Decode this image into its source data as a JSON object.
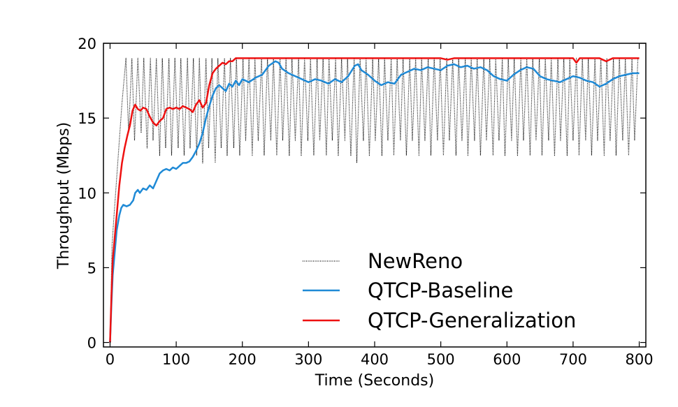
{
  "chart_data": {
    "type": "line",
    "title": "",
    "xlabel": "Time (Seconds)",
    "ylabel": "Throughput (Mbps)",
    "xlim": [
      -10,
      810
    ],
    "ylim": [
      -0.3,
      20
    ],
    "xticks": [
      0,
      100,
      200,
      300,
      400,
      500,
      600,
      700,
      800
    ],
    "yticks": [
      0,
      5,
      10,
      15,
      20
    ],
    "grid": false,
    "legend_position": "lower-right",
    "series": [
      {
        "name": "NewReno",
        "color": "#000000",
        "style": "dotted",
        "oscillation": {
          "low": 12.5,
          "high": 19.0,
          "period_s": 8.5
        },
        "x": [
          0,
          3,
          6,
          10,
          14,
          18,
          24,
          28,
          33,
          37,
          42,
          47,
          51,
          56,
          61,
          65,
          70,
          75,
          79,
          84,
          89,
          93,
          98,
          103,
          107,
          112,
          117,
          121,
          126,
          131,
          135,
          140,
          145,
          149,
          154,
          159,
          163,
          168,
          173,
          177,
          182,
          187,
          191,
          196,
          201,
          205,
          210,
          215,
          219,
          224,
          229,
          233,
          238,
          243,
          247,
          252,
          257,
          261,
          266,
          271,
          275,
          280,
          285,
          289,
          294,
          299,
          303,
          308,
          313,
          317,
          322,
          327,
          331,
          336,
          341,
          345,
          350,
          355,
          359,
          364,
          369,
          373,
          378,
          383,
          387,
          392,
          397,
          401,
          406,
          411,
          415,
          420,
          425,
          429,
          434,
          439,
          443,
          448,
          453,
          457,
          462,
          467,
          471,
          476,
          481,
          485,
          490,
          495,
          499,
          504,
          509,
          513,
          518,
          523,
          527,
          532,
          537,
          541,
          546,
          551,
          555,
          560,
          565,
          569,
          574,
          579,
          583,
          588,
          593,
          597,
          602,
          607,
          611,
          616,
          621,
          625,
          630,
          635,
          639,
          644,
          649,
          653,
          658,
          663,
          667,
          672,
          677,
          681,
          686,
          691,
          695,
          700,
          705,
          709,
          714,
          719,
          723,
          728,
          733,
          737,
          742,
          747,
          751,
          756,
          761,
          765,
          770,
          775,
          779,
          784,
          789,
          793,
          798
        ],
        "y": [
          0,
          6.5,
          8.5,
          11,
          13.5,
          16,
          19,
          14,
          19,
          13.5,
          19,
          14,
          19,
          13,
          19,
          13.5,
          19,
          12.5,
          19,
          13,
          19,
          12.5,
          19,
          13,
          19,
          12.5,
          19,
          13,
          19,
          12.5,
          19,
          12,
          19,
          13,
          19,
          12,
          19,
          13,
          19,
          12.5,
          19,
          13,
          19,
          12.5,
          19,
          13.5,
          19,
          12.5,
          19,
          13.5,
          19,
          12.5,
          19,
          13.5,
          19,
          12.5,
          19,
          13.5,
          19,
          12.5,
          19,
          13.5,
          19,
          12.5,
          19,
          13.5,
          19,
          12.5,
          19,
          13.5,
          19,
          12.5,
          19,
          13.5,
          19,
          12.5,
          19,
          13.5,
          19,
          12.5,
          19,
          12,
          19,
          13.5,
          19,
          12.5,
          19,
          13.5,
          19,
          12.5,
          19,
          13.5,
          19,
          12.5,
          19,
          13.5,
          19,
          12.5,
          19,
          13.5,
          19,
          12.5,
          19,
          13.5,
          19,
          12.5,
          19,
          13.5,
          19,
          12.5,
          19,
          13.5,
          19,
          12.5,
          19,
          13.5,
          19,
          12.5,
          19,
          13.5,
          19,
          12.5,
          19,
          13.5,
          19,
          12.5,
          19,
          13.5,
          19,
          12.5,
          19,
          13.5,
          19,
          12.5,
          19,
          13.5,
          19,
          12.5,
          19,
          13.5,
          19,
          12.5,
          19,
          13.5,
          19,
          12.5,
          19,
          13.5,
          19,
          12.5,
          19,
          13.5,
          19,
          12.5,
          19,
          13.5,
          19,
          12.5,
          19,
          13.5,
          19,
          12.5,
          19,
          13.5,
          19,
          12.5,
          19,
          13.5,
          19,
          12.5,
          19,
          13.5,
          19
        ]
      },
      {
        "name": "QTCP-Baseline",
        "color": "#1f8ad6",
        "style": "solid",
        "x": [
          0,
          2,
          4,
          7,
          10,
          14,
          17,
          20,
          25,
          30,
          35,
          38,
          42,
          45,
          50,
          55,
          60,
          65,
          70,
          75,
          80,
          85,
          90,
          95,
          100,
          105,
          110,
          115,
          120,
          125,
          130,
          135,
          140,
          145,
          150,
          155,
          160,
          165,
          170,
          175,
          180,
          185,
          190,
          195,
          200,
          210,
          220,
          230,
          240,
          250,
          255,
          260,
          270,
          280,
          290,
          300,
          310,
          320,
          330,
          340,
          350,
          360,
          370,
          375,
          380,
          390,
          400,
          410,
          420,
          430,
          440,
          450,
          460,
          470,
          480,
          490,
          500,
          510,
          520,
          530,
          540,
          550,
          560,
          570,
          580,
          590,
          600,
          610,
          620,
          630,
          640,
          650,
          660,
          670,
          680,
          690,
          700,
          710,
          720,
          730,
          740,
          750,
          760,
          770,
          780,
          790,
          800
        ],
        "y": [
          0,
          2.5,
          4.5,
          6,
          7.5,
          8.5,
          9,
          9.2,
          9.1,
          9.2,
          9.5,
          10,
          10.2,
          10,
          10.3,
          10.2,
          10.5,
          10.3,
          10.8,
          11.3,
          11.5,
          11.6,
          11.5,
          11.7,
          11.6,
          11.8,
          12,
          12,
          12.1,
          12.4,
          12.8,
          13.3,
          14,
          15,
          15.8,
          16.5,
          17,
          17.2,
          17,
          16.8,
          17.3,
          17.1,
          17.5,
          17.2,
          17.6,
          17.4,
          17.7,
          17.9,
          18.5,
          18.8,
          18.7,
          18.3,
          18,
          17.8,
          17.6,
          17.4,
          17.6,
          17.5,
          17.3,
          17.6,
          17.4,
          17.8,
          18.5,
          18.6,
          18.2,
          17.9,
          17.5,
          17.2,
          17.4,
          17.3,
          17.9,
          18.1,
          18.3,
          18.2,
          18.4,
          18.3,
          18.2,
          18.5,
          18.6,
          18.4,
          18.5,
          18.3,
          18.4,
          18.2,
          17.8,
          17.6,
          17.5,
          17.9,
          18.2,
          18.4,
          18.3,
          17.8,
          17.6,
          17.5,
          17.4,
          17.6,
          17.8,
          17.7,
          17.5,
          17.4,
          17.1,
          17.3,
          17.6,
          17.8,
          17.9,
          18.0,
          18.0
        ]
      },
      {
        "name": "QTCP-Generalization",
        "color": "#ee1111",
        "style": "solid",
        "x": [
          0,
          2,
          4,
          7,
          10,
          14,
          18,
          22,
          26,
          30,
          34,
          38,
          42,
          46,
          50,
          55,
          60,
          65,
          70,
          75,
          80,
          85,
          90,
          95,
          100,
          105,
          110,
          115,
          120,
          125,
          130,
          135,
          140,
          145,
          150,
          155,
          160,
          165,
          170,
          175,
          180,
          185,
          190,
          195,
          200,
          210,
          220,
          250,
          300,
          400,
          500,
          510,
          520,
          530,
          600,
          650,
          690,
          700,
          705,
          710,
          740,
          750,
          760,
          770,
          800
        ],
        "y": [
          0,
          3,
          5.5,
          7,
          8.5,
          10.5,
          12,
          13,
          13.8,
          14.5,
          15.5,
          15.9,
          15.6,
          15.5,
          15.7,
          15.6,
          15.1,
          14.7,
          14.5,
          14.8,
          15,
          15.6,
          15.7,
          15.6,
          15.7,
          15.6,
          15.8,
          15.7,
          15.6,
          15.4,
          15.9,
          16.2,
          15.7,
          16,
          17.2,
          18,
          18.3,
          18.5,
          18.7,
          18.6,
          18.8,
          18.8,
          19,
          19,
          19,
          19,
          19,
          19,
          19,
          19,
          19,
          18.9,
          19,
          19,
          19,
          19,
          19,
          19,
          18.7,
          19,
          19,
          18.8,
          19,
          19,
          19
        ]
      }
    ]
  }
}
